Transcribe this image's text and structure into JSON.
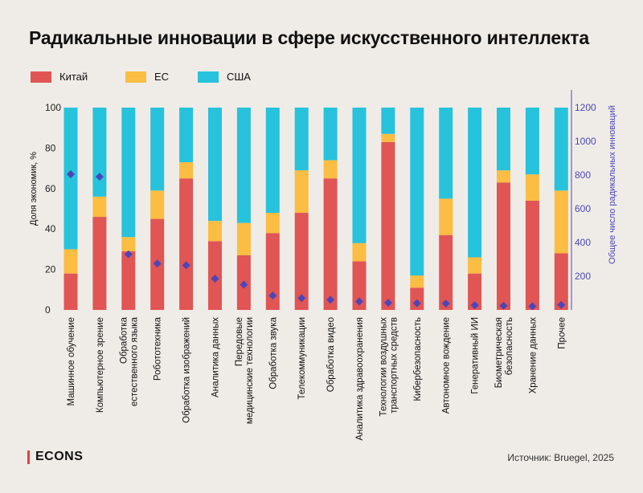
{
  "title": "Радикальные инновации в сфере искусственного интеллекта",
  "legend": [
    {
      "label": "Китай",
      "color": "#e15554"
    },
    {
      "label": "ЕС",
      "color": "#fbbd42"
    },
    {
      "label": "США",
      "color": "#27c2dc"
    }
  ],
  "source": "Источник: Bruegel, 2025",
  "logo": "ECONS",
  "chart_data": {
    "type": "bar",
    "stacked": true,
    "ylabel_left": "Доля экономик, %",
    "ylabel_right": "Общее число радикальных инноваций",
    "ylim_left": [
      0,
      100
    ],
    "ylim_right": [
      0,
      1200
    ],
    "yticks_left": [
      "0",
      "20",
      "40",
      "60",
      "80",
      "100"
    ],
    "yticks_right": [
      "200",
      "400",
      "600",
      "800",
      "1000",
      "1200"
    ],
    "categories": [
      [
        "Машинное обучение"
      ],
      [
        "Компьютерное зрение"
      ],
      [
        "Обработка",
        "естественного языка"
      ],
      [
        "Робототехника"
      ],
      [
        "Обработка изображений"
      ],
      [
        "Аналитика данных"
      ],
      [
        "Передовые",
        "медицинские технологии"
      ],
      [
        "Обработка звука"
      ],
      [
        "Телекоммуникации"
      ],
      [
        "Обработка видео"
      ],
      [
        "Аналитика здравоохранения"
      ],
      [
        "Технологии воздушных",
        "транспортных средств"
      ],
      [
        "Кибербезопасность"
      ],
      [
        "Автономное вождение"
      ],
      [
        "Генеративный ИИ"
      ],
      [
        "Биометрическая",
        "безопасность"
      ],
      [
        "Хранение данных"
      ],
      [
        "Прочее"
      ]
    ],
    "series": [
      {
        "name": "Китай",
        "color": "#e15554",
        "values": [
          18,
          46,
          29,
          45,
          65,
          34,
          27,
          38,
          48,
          65,
          24,
          83,
          11,
          37,
          18,
          63,
          54,
          28
        ]
      },
      {
        "name": "ЕС",
        "color": "#fbbd42",
        "values": [
          12,
          10,
          7,
          14,
          8,
          10,
          16,
          10,
          21,
          9,
          9,
          4,
          6,
          18,
          8,
          6,
          13,
          31
        ]
      },
      {
        "name": "США",
        "color": "#27c2dc",
        "values": [
          70,
          44,
          64,
          41,
          27,
          56,
          57,
          52,
          31,
          26,
          67,
          13,
          83,
          45,
          74,
          31,
          33,
          41
        ]
      }
    ],
    "markers": {
      "axis": "right",
      "color": "#4b46b8",
      "values": [
        805,
        790,
        330,
        275,
        265,
        185,
        150,
        85,
        70,
        60,
        50,
        42,
        40,
        38,
        28,
        25,
        22,
        30
      ]
    }
  }
}
